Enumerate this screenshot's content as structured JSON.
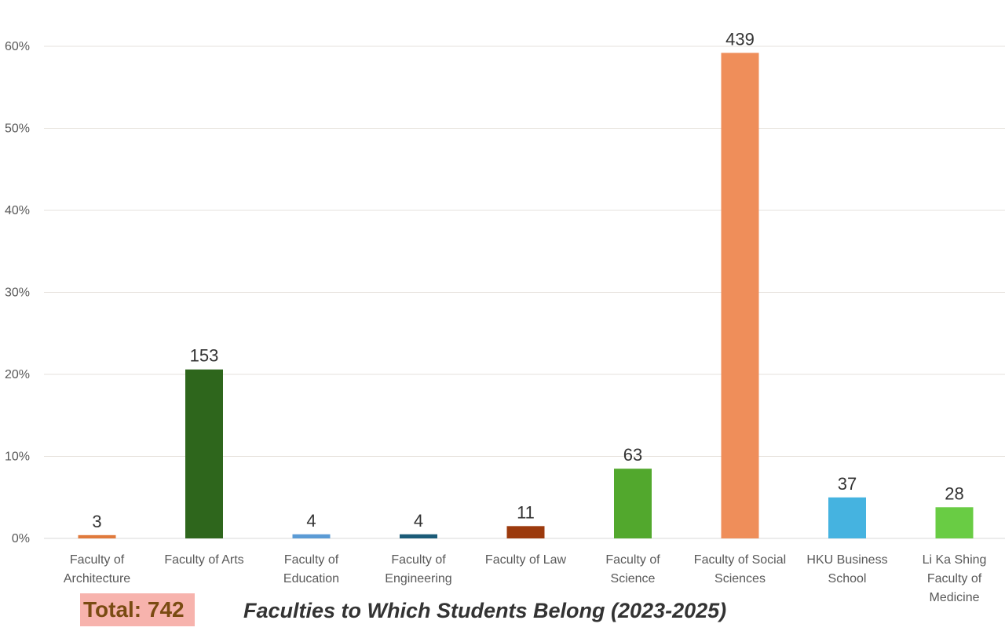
{
  "chart_data": {
    "type": "bar",
    "title": "Faculties to Which Students Belong (2023-2025)",
    "total_label": "Total: 742",
    "ylim": [
      0,
      0.6
    ],
    "yticks": [
      {
        "value": 0,
        "label": "0%"
      },
      {
        "value": 0.1,
        "label": "10%"
      },
      {
        "value": 0.2,
        "label": "20%"
      },
      {
        "value": 0.3,
        "label": "30%"
      },
      {
        "value": 0.4,
        "label": "40%"
      },
      {
        "value": 0.5,
        "label": "50%"
      },
      {
        "value": 0.6,
        "label": "60%"
      }
    ],
    "grid": true,
    "categories": [
      [
        "Faculty of",
        "Architecture"
      ],
      [
        "Faculty of Arts"
      ],
      [
        "Faculty of",
        "Education"
      ],
      [
        "Faculty of",
        "Engineering"
      ],
      [
        "Faculty of Law"
      ],
      [
        "Faculty of",
        "Science"
      ],
      [
        "Faculty of Social",
        "Sciences"
      ],
      [
        "HKU Business",
        "School"
      ],
      [
        "Li Ka Shing",
        "Faculty of",
        "Medicine"
      ]
    ],
    "counts": [
      3,
      153,
      4,
      4,
      11,
      63,
      439,
      37,
      28
    ],
    "values": [
      0.004,
      0.206,
      0.005,
      0.005,
      0.015,
      0.085,
      0.592,
      0.05,
      0.038
    ],
    "colors": [
      "#e07a3c",
      "#2e661c",
      "#5b9bd5",
      "#1b5b78",
      "#9c3a0d",
      "#52a82d",
      "#ef8e5a",
      "#45b3e0",
      "#69cc44"
    ],
    "highlight_color": "#f7b3ad"
  }
}
